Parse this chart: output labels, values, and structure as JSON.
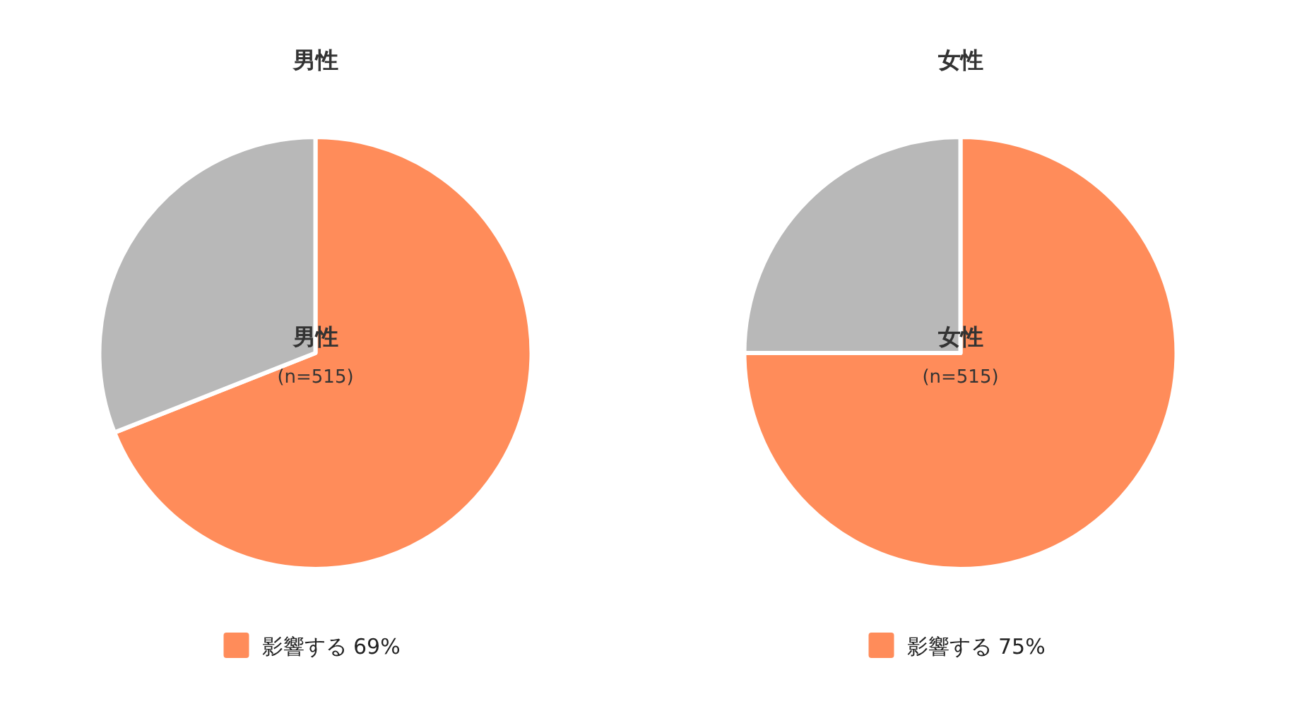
{
  "chart_data": [
    {
      "type": "pie",
      "title": "男性",
      "categories": [
        "影響する",
        null
      ],
      "values": [
        69,
        31
      ],
      "colors": [
        "#ff8c5a",
        "#b8b8b8"
      ],
      "value_labels": [
        "69%",
        null
      ],
      "annotations": [
        "男性",
        "(n=515)"
      ],
      "legend": "bottom"
    },
    {
      "type": "pie",
      "title": "女性",
      "categories": [
        "影響する",
        null
      ],
      "values": [
        75,
        25
      ],
      "colors": [
        "#ff8c5a",
        "#b8b8b8"
      ],
      "value_labels": [
        "75%",
        null
      ],
      "annotations": [
        "女性",
        "(n=515)"
      ],
      "legend": "bottom"
    }
  ]
}
